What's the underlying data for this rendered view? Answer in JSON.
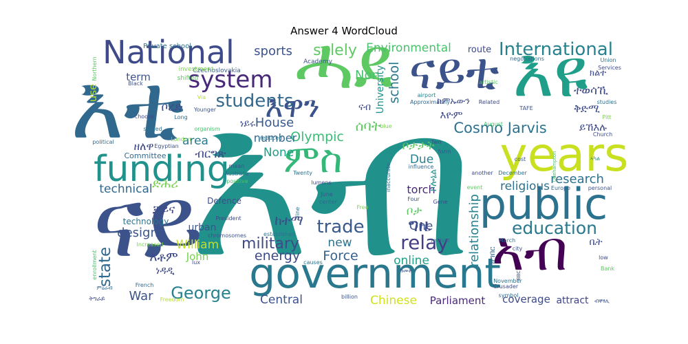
{
  "chart_data": {
    "type": "wordcloud",
    "title": "Answer 4 WordCloud",
    "words": [
      {
        "text": "እብ",
        "color": "#21918c"
      },
      {
        "text": "years",
        "color": "#c8e020"
      },
      {
        "text": "government",
        "color": "#2a788e"
      },
      {
        "text": "ናይ",
        "color": "#3b528b"
      },
      {
        "text": "public",
        "color": "#2c728e"
      },
      {
        "text": "funding",
        "color": "#21918c"
      },
      {
        "text": "ሓደ",
        "color": "#5ec962"
      },
      {
        "text": "እቲ",
        "color": "#31688e"
      },
      {
        "text": "ናይቲ",
        "color": "#3b528b"
      },
      {
        "text": "እዩ",
        "color": "#1f9e89"
      },
      {
        "text": "National",
        "color": "#3e4a89"
      },
      {
        "text": "ኣብ",
        "color": "#440154"
      },
      {
        "text": "education",
        "color": "#2a788e"
      },
      {
        "text": "system",
        "color": "#482878"
      },
      {
        "text": "students",
        "color": "#31688e"
      },
      {
        "text": "እዋን",
        "color": "#3b528b"
      },
      {
        "text": "ምስ",
        "color": "#35b779"
      },
      {
        "text": "International",
        "color": "#26828e"
      },
      {
        "text": "research",
        "color": "#2c728e"
      },
      {
        "text": "military",
        "color": "#3e4a89"
      },
      {
        "text": "trade",
        "color": "#38598c"
      },
      {
        "text": "relay",
        "color": "#433e85"
      },
      {
        "text": "George",
        "color": "#26828e"
      },
      {
        "text": "Cosmo Jarvis",
        "color": "#2c728e"
      },
      {
        "text": "sports",
        "color": "#3b528b"
      },
      {
        "text": "solely",
        "color": "#5ec962"
      },
      {
        "text": "Environmental",
        "color": "#4ac16d"
      },
      {
        "text": "Olympic",
        "color": "#3bbb75"
      },
      {
        "text": "House",
        "color": "#38598c"
      },
      {
        "text": "school",
        "color": "#2a788e"
      },
      {
        "text": "University",
        "color": "#21918c"
      },
      {
        "text": "state",
        "color": "#31688e"
      },
      {
        "text": "Central",
        "color": "#3b528b"
      },
      {
        "text": "Chinese",
        "color": "#d0e11c"
      },
      {
        "text": "Parliament",
        "color": "#482878"
      },
      {
        "text": "coverage",
        "color": "#3e4a89"
      },
      {
        "text": "attract",
        "color": "#414487"
      },
      {
        "text": "relationship",
        "color": "#26828e"
      },
      {
        "text": "Force",
        "color": "#34608d"
      },
      {
        "text": "online",
        "color": "#1fa088"
      },
      {
        "text": "energy",
        "color": "#3e4a89"
      },
      {
        "text": "design",
        "color": "#3b528b"
      },
      {
        "text": "technical",
        "color": "#31688e"
      },
      {
        "text": "area",
        "color": "#2a788e"
      },
      {
        "text": "religious",
        "color": "#2c728e"
      },
      {
        "text": "War",
        "color": "#3b528b"
      },
      {
        "text": "William",
        "color": "#c2df23"
      },
      {
        "text": "John",
        "color": "#7ad151"
      },
      {
        "text": "new",
        "color": "#2c728e"
      },
      {
        "text": "One",
        "color": "#3b528b"
      },
      {
        "text": "Due",
        "color": "#26828e"
      },
      {
        "text": "Non",
        "color": "#4ac16d"
      },
      {
        "text": "None",
        "color": "#1fa088"
      },
      {
        "text": "number",
        "color": "#31688e"
      },
      {
        "text": "term",
        "color": "#3b528b"
      },
      {
        "text": "use",
        "color": "#b5de2b"
      },
      {
        "text": "route",
        "color": "#3e4a89"
      },
      {
        "text": "torch",
        "color": "#482878"
      },
      {
        "text": "technology",
        "color": "#2c728e"
      },
      {
        "text": "urban",
        "color": "#3b528b"
      },
      {
        "text": "Defence",
        "color": "#3e4a89"
      },
      {
        "text": "Committee",
        "color": "#31688e"
      },
      {
        "text": "Private school",
        "color": "#2c728e"
      },
      {
        "text": "Czechoslovakia",
        "color": "#38598c"
      },
      {
        "text": "investment",
        "color": "#7ad151"
      },
      {
        "text": "shifted",
        "color": "#5ec962"
      },
      {
        "text": "Academy",
        "color": "#3b528b"
      },
      {
        "text": "negotiations",
        "color": "#31688e"
      },
      {
        "text": "Union",
        "color": "#2c728e"
      },
      {
        "text": "Services",
        "color": "#3e4a89"
      },
      {
        "text": "Black",
        "color": "#3b528b"
      },
      {
        "text": "Northern",
        "color": "#5ec962"
      },
      {
        "text": "Via",
        "color": "#b5de2b"
      },
      {
        "text": "airport",
        "color": "#26828e"
      },
      {
        "text": "Approximately",
        "color": "#31688e"
      },
      {
        "text": "Related",
        "color": "#3e4a89"
      },
      {
        "text": "artistic",
        "color": "#5ec962"
      },
      {
        "text": "studies",
        "color": "#2c728e"
      },
      {
        "text": "TAFE",
        "color": "#3b528b"
      },
      {
        "text": "Pitt",
        "color": "#7ad151"
      },
      {
        "text": "August",
        "color": "#4ac16d"
      },
      {
        "text": "Church",
        "color": "#3e4a89"
      },
      {
        "text": "Younger",
        "color": "#3b528b"
      },
      {
        "text": "Long",
        "color": "#31688e"
      },
      {
        "text": "staged",
        "color": "#2c728e"
      },
      {
        "text": "organism",
        "color": "#4ac16d"
      },
      {
        "text": "London",
        "color": "#7ad151"
      },
      {
        "text": "Egyptian",
        "color": "#3b528b"
      },
      {
        "text": "choose",
        "color": "#3e4a89"
      },
      {
        "text": "political",
        "color": "#31688e"
      },
      {
        "text": "reduced",
        "color": "#2c728e"
      },
      {
        "text": "blue",
        "color": "#7ad151"
      },
      {
        "text": "form",
        "color": "#3b528b"
      },
      {
        "text": "Two",
        "color": "#3e4a89"
      },
      {
        "text": "influence",
        "color": "#31688e"
      },
      {
        "text": "inaccurate",
        "color": "#2c728e"
      },
      {
        "text": "cost",
        "color": "#3b528b"
      },
      {
        "text": "Okehampton",
        "color": "#4ac16d"
      },
      {
        "text": "December",
        "color": "#2c728e"
      },
      {
        "text": "another",
        "color": "#3e4a89"
      },
      {
        "text": "Europe",
        "color": "#31688e"
      },
      {
        "text": "personal",
        "color": "#3b528b"
      },
      {
        "text": "event",
        "color": "#5ec962"
      },
      {
        "text": "mean",
        "color": "#3b528b"
      },
      {
        "text": "Australia",
        "color": "#31688e"
      },
      {
        "text": "positive",
        "color": "#4ac16d"
      },
      {
        "text": "Twenty",
        "color": "#2c728e"
      },
      {
        "text": "lumens",
        "color": "#3e4a89"
      },
      {
        "text": "June",
        "color": "#3b528b"
      },
      {
        "text": "center",
        "color": "#31688e"
      },
      {
        "text": "Four",
        "color": "#3b528b"
      },
      {
        "text": "Gene",
        "color": "#3e4a89"
      },
      {
        "text": "Free",
        "color": "#7ad151"
      },
      {
        "text": "line",
        "color": "#2c728e"
      },
      {
        "text": "President",
        "color": "#3e4a89"
      },
      {
        "text": "chromosomes",
        "color": "#3b528b"
      },
      {
        "text": "established",
        "color": "#2c728e"
      },
      {
        "text": "revival",
        "color": "#31688e"
      },
      {
        "text": "March",
        "color": "#2c728e"
      },
      {
        "text": "city",
        "color": "#3b528b"
      },
      {
        "text": "low",
        "color": "#3e4a89"
      },
      {
        "text": "BBC",
        "color": "#3b528b"
      },
      {
        "text": "Bank",
        "color": "#5ec962"
      },
      {
        "text": "Crusader",
        "color": "#3e4a89"
      },
      {
        "text": "November",
        "color": "#2c728e"
      },
      {
        "text": "symbol",
        "color": "#31688e"
      },
      {
        "text": "causes",
        "color": "#2c728e"
      },
      {
        "text": "billion",
        "color": "#3b528b"
      },
      {
        "text": "Increased",
        "color": "#7ad151"
      },
      {
        "text": "lux",
        "color": "#3e4a89"
      },
      {
        "text": "French",
        "color": "#31688e"
      },
      {
        "text": "Freedom",
        "color": "#b5de2b"
      },
      {
        "text": "enrollment",
        "color": "#4ac16d"
      },
      {
        "text": "ትግራይ",
        "color": "#3e4a89"
      },
      {
        "text": "ብቐፃሊ",
        "color": "#3b528b"
      },
      {
        "text": "ሰባት",
        "color": "#5ec962"
      },
      {
        "text": "ቦታ",
        "color": "#5ec962"
      },
      {
        "text": "ቦታታት",
        "color": "#5ec962"
      },
      {
        "text": "ግዜ",
        "color": "#3e4a89"
      },
      {
        "text": "ከተማ",
        "color": "#3e4a89"
      },
      {
        "text": "እቶም",
        "color": "#3e4a89"
      },
      {
        "text": "ነዳዲ",
        "color": "#3e4a89"
      },
      {
        "text": "ድሕሪ",
        "color": "#7ad151"
      },
      {
        "text": "ቻይና",
        "color": "#3e4a89"
      },
      {
        "text": "ዘለዋ",
        "color": "#3e4a89"
      },
      {
        "text": "ብርግጽ",
        "color": "#3e4a89"
      },
      {
        "text": "ቦረድ",
        "color": "#3e4a89"
      },
      {
        "text": "ነይሩ",
        "color": "#3e4a89"
      },
      {
        "text": "ተወሳኺ",
        "color": "#3e4a89"
      },
      {
        "text": "ቅድሚ",
        "color": "#3e4a89"
      },
      {
        "text": "ይኸእሉ",
        "color": "#3e4a89"
      },
      {
        "text": "ክልተ",
        "color": "#3e4a89"
      },
      {
        "text": "ክምኡውን",
        "color": "#3e4a89"
      },
      {
        "text": "እዮም",
        "color": "#3e4a89"
      },
      {
        "text": "ናብ",
        "color": "#3e4a89"
      },
      {
        "text": "ኮሎኔል",
        "color": "#21918c"
      },
      {
        "text": "ቤት",
        "color": "#3e4a89"
      },
      {
        "text": "ዝግበር",
        "color": "#31688e"
      },
      {
        "text": "ምዕራብ",
        "color": "#31688e"
      },
      {
        "text": "ኣካል",
        "color": "#21918c"
      },
      {
        "text": "ዓመት",
        "color": "#3b528b"
      }
    ]
  }
}
